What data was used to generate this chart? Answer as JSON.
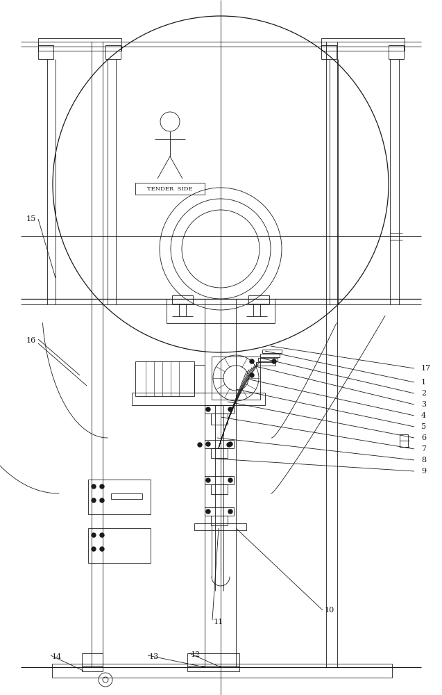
{
  "bg_color": "#ffffff",
  "line_color": "#1a1a1a",
  "fig_width": 6.37,
  "fig_height": 10.0
}
